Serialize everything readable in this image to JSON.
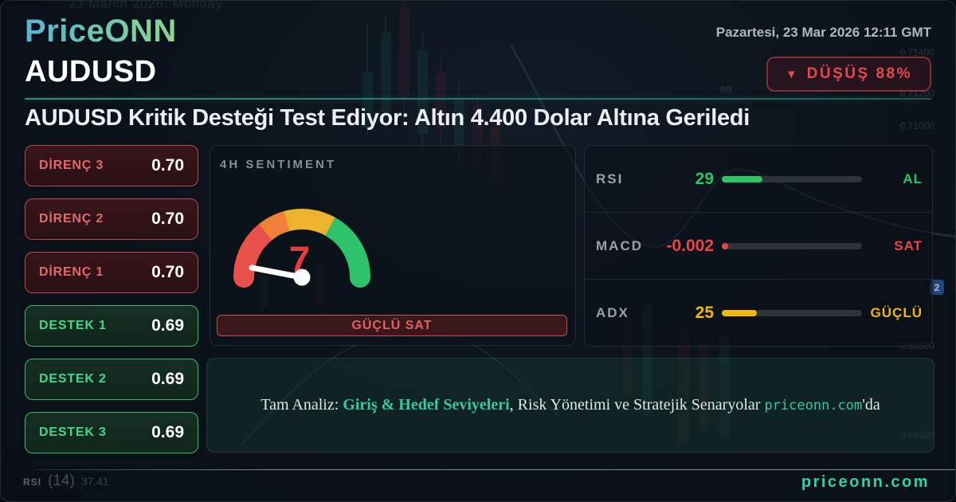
{
  "colors": {
    "accent_teal": "#2bd4a4",
    "divider_teal": "#2f9683",
    "bearish_red": "#e5484d",
    "bullish_green": "#3ddc84",
    "warning_yellow": "#f0b90b",
    "gauge_red": "#e8504a",
    "gauge_orange": "#f08038",
    "gauge_amber": "#ecb22e",
    "gauge_green": "#2dc26b",
    "gauge_value_red": "#e23c3f"
  },
  "header": {
    "logo": "PriceONN",
    "datetime": "Pazartesi, 23 Mar 2026 12:11 GMT",
    "symbol": "AUDUSD",
    "badge": {
      "arrow": "▼",
      "label": "DÜŞÜŞ 88%"
    }
  },
  "headline": "AUDUSD Kritik Desteği Test Ediyor: Altın 4.400 Dolar Altına Geriledi",
  "levels": [
    {
      "label": "DİRENÇ 3",
      "value": "0.70",
      "type": "resistance"
    },
    {
      "label": "DİRENÇ 2",
      "value": "0.70",
      "type": "resistance"
    },
    {
      "label": "DİRENÇ 1",
      "value": "0.70",
      "type": "resistance"
    },
    {
      "label": "DESTEK 1",
      "value": "0.69",
      "type": "support"
    },
    {
      "label": "DESTEK 2",
      "value": "0.69",
      "type": "support"
    },
    {
      "label": "DESTEK 3",
      "value": "0.69",
      "type": "support"
    }
  ],
  "sentiment": {
    "title": "4H SENTIMENT",
    "value": "7",
    "scale_max": 100,
    "signal": "GÜÇLÜ SAT"
  },
  "indicators": [
    {
      "name": "RSI",
      "value": "29",
      "signal": "AL",
      "fill_percent": 29,
      "fill_color": "#26c765"
    },
    {
      "name": "MACD",
      "value": "-0.002",
      "signal": "SAT",
      "fill_percent": 2,
      "fill_color": "#ef4444"
    },
    {
      "name": "ADX",
      "value": "25",
      "signal": "GÜÇLÜ",
      "fill_percent": 25,
      "fill_color": "#f0b90b"
    }
  ],
  "banner": {
    "prefix": "Tam Analiz: ",
    "highlight": "Giriş & Hedef Seviyeleri",
    "middle": ", Risk Yönetimi ve Stratejik Senaryolar ",
    "site": "priceonn.com",
    "suffix": "'da"
  },
  "footer": {
    "website": "priceonn.com",
    "chart_indicator": "RSI",
    "chart_period": "(14)",
    "chart_value": "37.41"
  },
  "background": {
    "top_date": "23 March 2026, Monday",
    "bb_label": "BB",
    "count_badge": "2",
    "price_labels": [
      "0.71400",
      "0.71200",
      "0.71000",
      "0.69800",
      "0.69600"
    ]
  }
}
